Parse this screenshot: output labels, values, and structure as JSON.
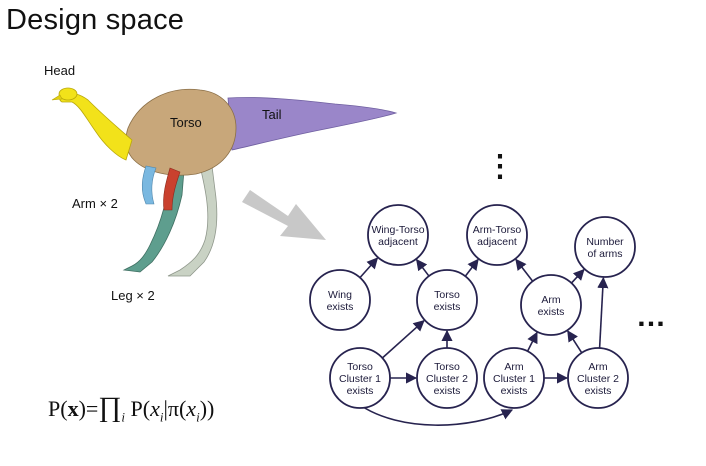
{
  "title": "Design space",
  "creature_labels": {
    "head": "Head",
    "torso": "Torso",
    "tail": "Tail",
    "arm": "Arm × 2",
    "leg": "Leg × 2"
  },
  "formula": {
    "lhs": "P(x)",
    "equals": "=",
    "product": "∏",
    "product_index": "i",
    "rhs": "P(x",
    "rhs_sub": "i",
    "given": "|π(x",
    "given_sub": "i",
    "close": "))"
  },
  "graph": {
    "nodes": [
      {
        "id": "wing_torso_adjacent",
        "lines": [
          "Wing-Torso",
          "adjacent"
        ]
      },
      {
        "id": "arm_torso_adjacent",
        "lines": [
          "Arm-Torso",
          "adjacent"
        ]
      },
      {
        "id": "number_of_arms",
        "lines": [
          "Number",
          "of arms"
        ]
      },
      {
        "id": "wing_exists",
        "lines": [
          "Wing",
          "exists"
        ]
      },
      {
        "id": "torso_exists",
        "lines": [
          "Torso",
          "exists"
        ]
      },
      {
        "id": "arm_exists",
        "lines": [
          "Arm",
          "exists"
        ]
      },
      {
        "id": "torso_cluster_1",
        "lines": [
          "Torso",
          "Cluster 1",
          "exists"
        ]
      },
      {
        "id": "torso_cluster_2",
        "lines": [
          "Torso",
          "Cluster 2",
          "exists"
        ]
      },
      {
        "id": "arm_cluster_1",
        "lines": [
          "Arm",
          "Cluster 1",
          "exists"
        ]
      },
      {
        "id": "arm_cluster_2",
        "lines": [
          "Arm",
          "Cluster 2",
          "exists"
        ]
      }
    ],
    "edges": [
      [
        "wing_exists",
        "wing_torso_adjacent"
      ],
      [
        "torso_exists",
        "wing_torso_adjacent"
      ],
      [
        "torso_exists",
        "arm_torso_adjacent"
      ],
      [
        "arm_exists",
        "arm_torso_adjacent"
      ],
      [
        "arm_exists",
        "number_of_arms"
      ],
      [
        "arm_cluster_2",
        "number_of_arms"
      ],
      [
        "torso_cluster_1",
        "torso_exists"
      ],
      [
        "torso_cluster_2",
        "torso_exists"
      ],
      [
        "torso_cluster_1",
        "torso_cluster_2"
      ],
      [
        "arm_cluster_1",
        "arm_exists"
      ],
      [
        "arm_cluster_2",
        "arm_exists"
      ],
      [
        "arm_cluster_1",
        "arm_cluster_2"
      ],
      [
        "torso_cluster_1",
        "arm_cluster_1"
      ]
    ],
    "ellipsis_vertical": "⋮",
    "ellipsis_horizontal": "…"
  },
  "colors": {
    "head": "#f2e21a",
    "torso": "#c8a77a",
    "tail": "#9a86c9",
    "arm_left": "#7ab8e0",
    "arm_right": "#c9412e",
    "leg_near": "#5e9e8e",
    "leg_far": "#c9d2c4",
    "node_stroke": "#27234f",
    "arrow_gray": "#c8c8c8"
  }
}
